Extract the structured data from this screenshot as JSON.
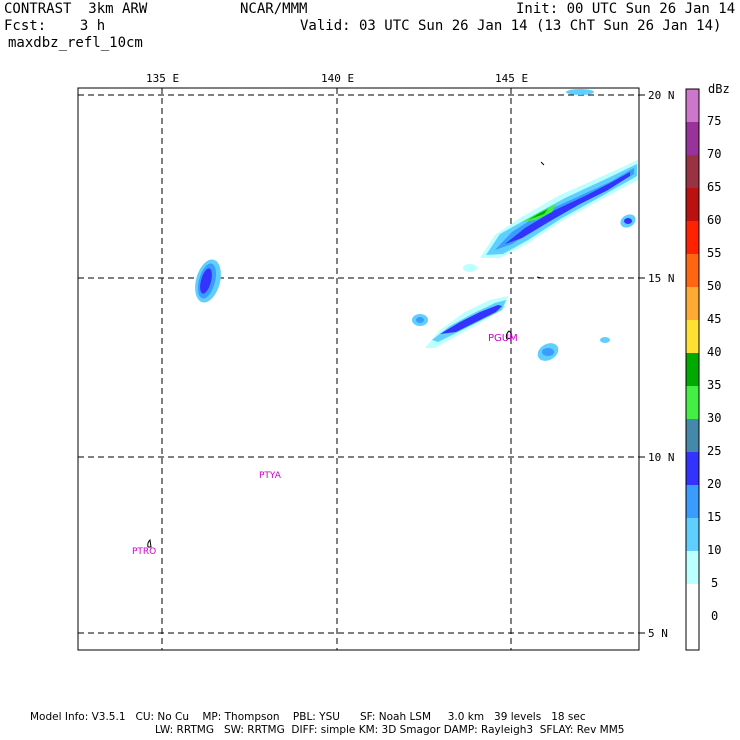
{
  "header": {
    "model": "CONTRAST  3km ARW",
    "fcst": "Fcst:    3 h",
    "org": "NCAR/MMM",
    "init": "Init: 00 UTC Sun 26 Jan 14",
    "valid": "Valid: 03 UTC Sun 26 Jan 14 (13 ChT Sun 26 Jan 14)",
    "field": "maxdbz_refl_10cm"
  },
  "map": {
    "lon_labels": [
      "135 E",
      "140 E",
      "145 E"
    ],
    "lat_labels": [
      "20 N",
      "15 N",
      "10 N",
      "5 N"
    ],
    "stations": [
      "PGUM",
      "PTYA",
      "PTRO"
    ]
  },
  "legend": {
    "unit": "dBz",
    "levels": [
      "75",
      "70",
      "65",
      "60",
      "55",
      "50",
      "45",
      "40",
      "35",
      "30",
      "25",
      "20",
      "15",
      "10",
      "5",
      "0"
    ],
    "colors": [
      "#ffffff",
      "#bbffff",
      "#5fcfff",
      "#3a9cff",
      "#3333ff",
      "#4488aa",
      "#44ee44",
      "#00aa00",
      "#ffe033",
      "#ffaa33",
      "#ff6611",
      "#ff2200",
      "#bb1111",
      "#993344",
      "#993399",
      "#cc77cc"
    ]
  },
  "footer": {
    "line1": "Model Info: V3.5.1   CU: No Cu    MP: Thompson    PBL: YSU      SF: Noah LSM     3.0 km   39 levels   18 sec",
    "line2": "LW: RRTMG   SW: RRTMG  DIFF: simple KM: 3D Smagor DAMP: Rayleigh3  SFLAY: Rev MM5"
  }
}
